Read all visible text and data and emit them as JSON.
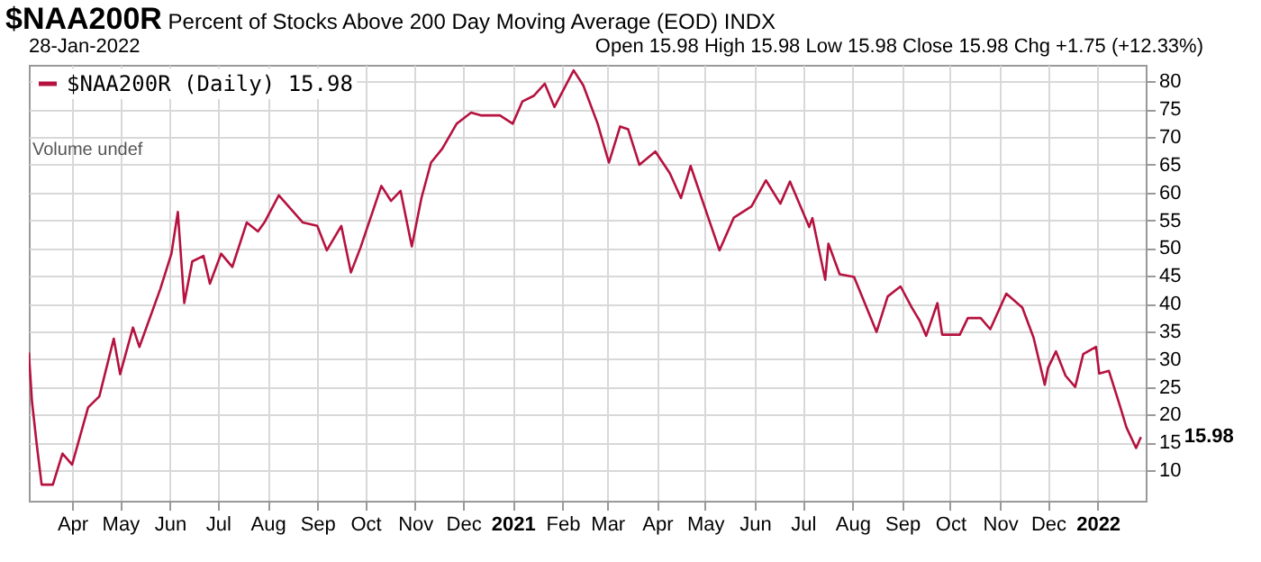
{
  "chart_data": {
    "type": "line",
    "title": "$NAA200R Percent of Stocks Above 200 Day Moving Average (EOD)  INDX",
    "subtitle": "28-Jan-2022",
    "annotations": [
      "Open 15.98  High 15.98  Low 15.98  Close 15.98  Chg +1.75 (+12.33%)",
      "Volume undef",
      {
        "text": "15.98",
        "x": "2022-01-28",
        "y": 15.98
      }
    ],
    "x": [
      "2020-03-05",
      "2020-03-07",
      "2020-03-10",
      "2020-03-13",
      "2020-03-20",
      "2020-03-26",
      "2020-04-01",
      "2020-04-11",
      "2020-04-18",
      "2020-04-27",
      "2020-05-01",
      "2020-05-09",
      "2020-05-13",
      "2020-05-26",
      "2020-06-02",
      "2020-06-06",
      "2020-06-10",
      "2020-06-15",
      "2020-06-22",
      "2020-06-26",
      "2020-07-03",
      "2020-07-10",
      "2020-07-19",
      "2020-07-26",
      "2020-07-30",
      "2020-08-08",
      "2020-08-23",
      "2020-09-01",
      "2020-09-07",
      "2020-09-16",
      "2020-09-22",
      "2020-09-28",
      "2020-10-11",
      "2020-10-17",
      "2020-10-23",
      "2020-10-30",
      "2020-11-05",
      "2020-11-11",
      "2020-11-18",
      "2020-11-27",
      "2020-12-06",
      "2020-12-12",
      "2020-12-24",
      "2021-01-01",
      "2021-01-07",
      "2021-01-14",
      "2021-01-21",
      "2021-01-27",
      "2021-02-08",
      "2021-02-14",
      "2021-02-23",
      "2021-03-02",
      "2021-03-09",
      "2021-03-14",
      "2021-03-21",
      "2021-03-31",
      "2021-04-09",
      "2021-04-16",
      "2021-04-22",
      "2021-05-03",
      "2021-05-10",
      "2021-05-19",
      "2021-05-30",
      "2021-06-08",
      "2021-06-17",
      "2021-06-23",
      "2021-07-05",
      "2021-07-07",
      "2021-07-15",
      "2021-07-17",
      "2021-07-24",
      "2021-08-02",
      "2021-08-16",
      "2021-08-23",
      "2021-08-31",
      "2021-09-07",
      "2021-09-12",
      "2021-09-16",
      "2021-09-23",
      "2021-09-26",
      "2021-10-07",
      "2021-10-12",
      "2021-10-20",
      "2021-10-26",
      "2021-11-05",
      "2021-11-15",
      "2021-11-22",
      "2021-11-29",
      "2021-12-01",
      "2021-12-06",
      "2021-12-12",
      "2021-12-18",
      "2021-12-23",
      "2021-12-31",
      "2022-01-02",
      "2022-01-08",
      "2022-01-15",
      "2022-01-19",
      "2022-01-25",
      "2022-01-28"
    ],
    "series": [
      {
        "name": "$NAA200R (Daily) 15.98",
        "color": "#b5123f",
        "values": [
          31.2,
          22.3,
          14.5,
          7.4,
          7.4,
          13,
          11,
          21.3,
          23.3,
          33.7,
          27.3,
          35.7,
          32.2,
          42.6,
          49,
          56.5,
          40.1,
          47.6,
          48.6,
          43.6,
          49,
          46.6,
          54.6,
          53,
          54.6,
          59.5,
          54.6,
          54,
          49.6,
          54,
          45.6,
          50.1,
          61.2,
          58.5,
          60.3,
          50.3,
          59,
          65.4,
          67.9,
          72.4,
          74.4,
          73.9,
          73.9,
          72.4,
          76.4,
          77.4,
          79.6,
          75.4,
          82,
          79.3,
          72.4,
          65.4,
          71.9,
          71.4,
          65,
          67.4,
          63.5,
          59,
          64.8,
          55.5,
          49.6,
          55.5,
          57.5,
          62.2,
          58,
          62,
          53.8,
          55.4,
          44.3,
          50.8,
          45.3,
          44.8,
          34.9,
          41.3,
          43.1,
          39.3,
          36.9,
          34.2,
          40.1,
          34.4,
          34.4,
          37.4,
          37.4,
          35.4,
          41.8,
          39.3,
          33.9,
          25.4,
          28.4,
          31.4,
          27,
          25,
          30.9,
          32.2,
          27.4,
          27.9,
          21.5,
          17.7,
          14,
          15.98
        ]
      }
    ],
    "xlim": [
      "2020-03-05",
      "2022-01-31"
    ],
    "xticks": [
      {
        "value": "2020-04",
        "label": "Apr"
      },
      {
        "value": "2020-05",
        "label": "May"
      },
      {
        "value": "2020-06",
        "label": "Jun"
      },
      {
        "value": "2020-07",
        "label": "Jul"
      },
      {
        "value": "2020-08",
        "label": "Aug"
      },
      {
        "value": "2020-09",
        "label": "Sep"
      },
      {
        "value": "2020-10",
        "label": "Oct"
      },
      {
        "value": "2020-11",
        "label": "Nov"
      },
      {
        "value": "2020-12",
        "label": "Dec"
      },
      {
        "value": "2021-01",
        "label": "2021"
      },
      {
        "value": "2021-02",
        "label": "Feb"
      },
      {
        "value": "2021-03",
        "label": "Mar"
      },
      {
        "value": "2021-04",
        "label": "Apr"
      },
      {
        "value": "2021-05",
        "label": "May"
      },
      {
        "value": "2021-06",
        "label": "Jun"
      },
      {
        "value": "2021-07",
        "label": "Jul"
      },
      {
        "value": "2021-08",
        "label": "Aug"
      },
      {
        "value": "2021-09",
        "label": "Sep"
      },
      {
        "value": "2021-10",
        "label": "Oct"
      },
      {
        "value": "2021-11",
        "label": "Nov"
      },
      {
        "value": "2021-12",
        "label": "Dec"
      },
      {
        "value": "2022-01",
        "label": "2022"
      }
    ],
    "ylim": [
      4.5,
      83
    ],
    "yticks": [
      10,
      15,
      20,
      25,
      30,
      35,
      40,
      45,
      50,
      55,
      60,
      65,
      70,
      75,
      80
    ],
    "grid": true,
    "legend": "top left"
  }
}
